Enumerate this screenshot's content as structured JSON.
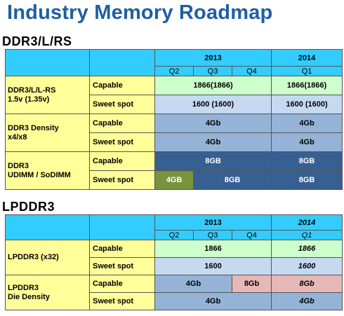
{
  "title": "Industry Memory Roadmap",
  "ddr3": {
    "section": "DDR3/L/RS",
    "year_2013": "2013",
    "year_2014": "2014",
    "quarters": [
      "Q2",
      "Q3",
      "Q4",
      "Q1"
    ],
    "groups": [
      {
        "label": "DDR3/L/L-RS\n1.5v (1.35v)",
        "rows": [
          {
            "sub": "Capable",
            "v2013": "1866(1866)",
            "v2014": "1866(1866)"
          },
          {
            "sub": "Sweet spot",
            "v2013": "1600 (1600)",
            "v2014": "1600 (1600)"
          }
        ]
      },
      {
        "label": "DDR3 Density\nx4/x8",
        "rows": [
          {
            "sub": "Capable",
            "v2013": "4Gb",
            "v2014": "4Gb"
          },
          {
            "sub": "Sweet spot",
            "v2013": "4Gb",
            "v2014": "4Gb"
          }
        ]
      },
      {
        "label": "DDR3\nUDIMM / SoDIMM",
        "rows": [
          {
            "sub": "Capable",
            "v2013": "8GB",
            "v2014": "8GB"
          },
          {
            "sub": "Sweet spot",
            "v2013a": "4GB",
            "v2013b": "8GB",
            "v2014": "8GB"
          }
        ]
      }
    ]
  },
  "lpddr3": {
    "section": "LPDDR3",
    "year_2013": "2013",
    "year_2014": "2014",
    "quarters": [
      "Q2",
      "Q3",
      "Q4",
      "Q1"
    ],
    "groups": [
      {
        "label": "LPDDR3 (x32)",
        "rows": [
          {
            "sub": "Capable",
            "v2013": "1866",
            "v2014": "1866"
          },
          {
            "sub": "Sweet spot",
            "v2013": "1600",
            "v2014": "1600"
          }
        ]
      },
      {
        "label": "LPDDR3\nDie Density",
        "rows": [
          {
            "sub": "Capable",
            "v2013a": "4Gb",
            "v2013b": "8Gb",
            "v2014": "8Gb"
          },
          {
            "sub": "Sweet spot",
            "v2013": "4Gb",
            "v2014": "4Gb"
          }
        ]
      }
    ]
  },
  "colors": {
    "header": "#33ccff",
    "label_bg": "#ffff99",
    "light_green": "#ccffcc",
    "light_blue": "#c5d9f1",
    "mid_blue": "#95b3d7",
    "dark_blue": "#376092",
    "olive": "#77933c",
    "pink": "#e6b8b7",
    "title": "#1f5fa3"
  }
}
